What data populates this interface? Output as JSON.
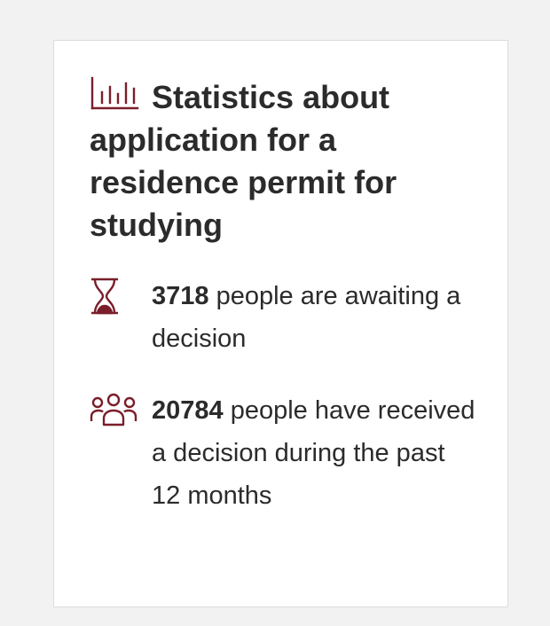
{
  "card": {
    "title": "Statistics about application for a residence permit for studying",
    "icons": {
      "title": "bar-chart-icon",
      "waiting": "hourglass-icon",
      "decided": "people-group-icon"
    },
    "accent_color": "#7a1e2a"
  },
  "stats": {
    "waiting": {
      "number": "3718",
      "text": " people are awaiting a decision"
    },
    "decided": {
      "number": "20784",
      "text": " people have received a decision during the past 12 months"
    }
  }
}
